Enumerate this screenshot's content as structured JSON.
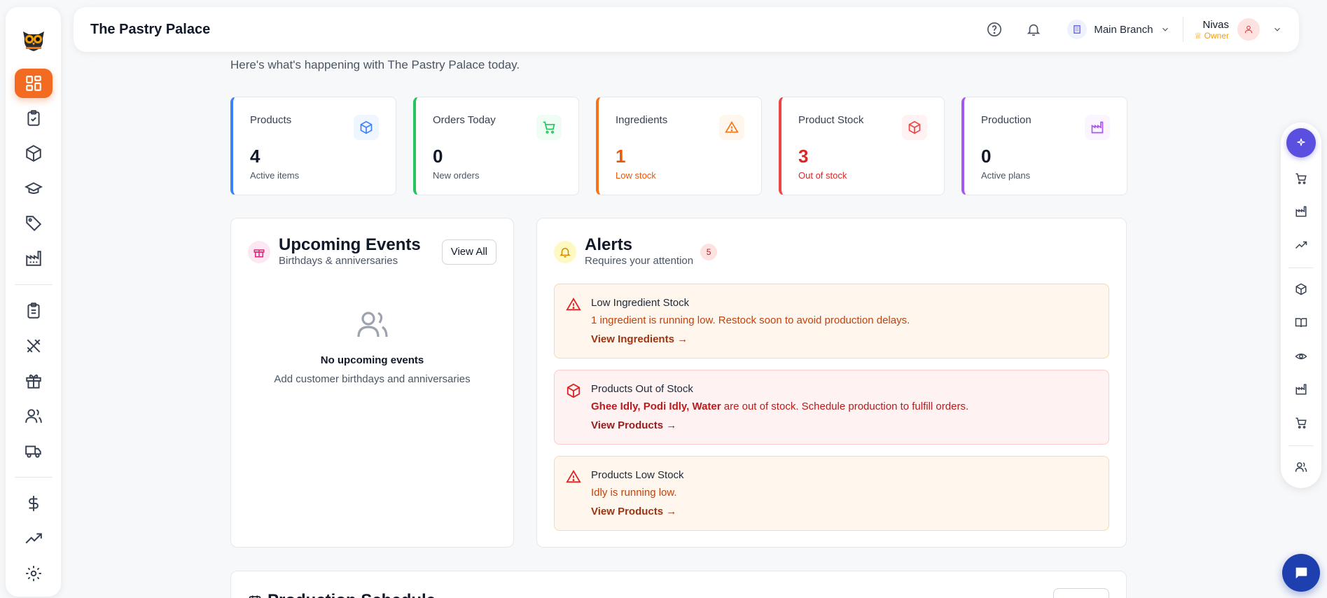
{
  "app": {
    "title": "The Pastry Palace"
  },
  "header": {
    "branch_label": "Main Branch",
    "user_name": "Nivas",
    "user_role": "Owner"
  },
  "greeting": {
    "subtitle": "Here's what's happening with The Pastry Palace today."
  },
  "stats": [
    {
      "label": "Products",
      "value": "4",
      "sub": "Active items",
      "accent": "#3b82f6",
      "icon": "box-icon"
    },
    {
      "label": "Orders Today",
      "value": "0",
      "sub": "New orders",
      "accent": "#22c55e",
      "icon": "cart-icon"
    },
    {
      "label": "Ingredients",
      "value": "1",
      "sub": "Low stock",
      "accent": "#f97316",
      "icon": "warning-icon"
    },
    {
      "label": "Product Stock",
      "value": "3",
      "sub": "Out of stock",
      "accent": "#ef4444",
      "icon": "box-icon"
    },
    {
      "label": "Production",
      "value": "0",
      "sub": "Active plans",
      "accent": "#a855f7",
      "icon": "factory-icon"
    }
  ],
  "events": {
    "title": "Upcoming Events",
    "subtitle": "Birthdays & anniversaries",
    "view_all": "View All",
    "empty_title": "No upcoming events",
    "empty_sub": "Add customer birthdays and anniversaries"
  },
  "alerts": {
    "title": "Alerts",
    "subtitle": "Requires your attention",
    "count": "5",
    "items": [
      {
        "title": "Low Ingredient Stock",
        "message": "1 ingredient is running low. Restock soon to avoid production delays.",
        "link": "View Ingredients →",
        "level": "warn"
      },
      {
        "title": "Products Out of Stock",
        "message_strong": "Ghee Idly, Podi Idly, Water",
        "message": " are out of stock. Schedule production to fulfill orders.",
        "link": "View Products →",
        "level": "danger"
      },
      {
        "title": "Products Low Stock",
        "message": "Idly is running low.",
        "link": "View Products →",
        "level": "warn"
      }
    ]
  },
  "production": {
    "title": "Production Schedule"
  },
  "colors": {
    "brand": "#f26b21",
    "rail_accent": "#5b4fe0",
    "chat": "#1e40af"
  }
}
